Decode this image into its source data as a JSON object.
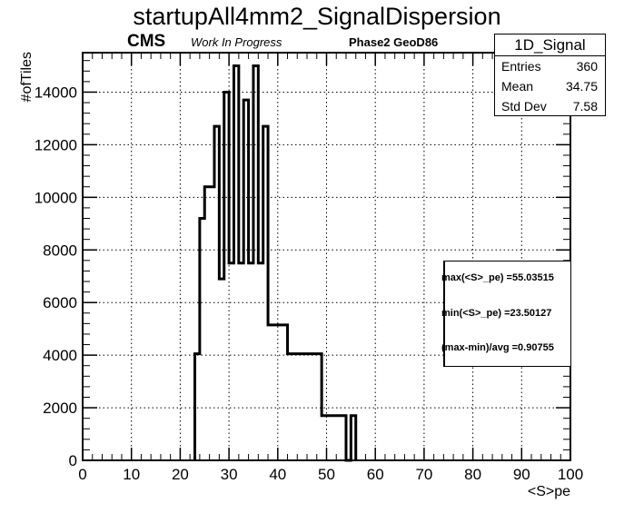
{
  "chart_data": {
    "type": "bar",
    "title": "startupAll4mm2_SignalDispersion",
    "xlabel": "<S>pe",
    "ylabel": "#ofTiles",
    "xlim": [
      0,
      100
    ],
    "ylim": [
      0,
      15500
    ],
    "xticks": [
      0,
      10,
      20,
      30,
      40,
      50,
      60,
      70,
      80,
      90,
      100
    ],
    "yticks": [
      0,
      2000,
      4000,
      6000,
      8000,
      10000,
      12000,
      14000
    ],
    "grid": true,
    "bins": [
      {
        "x0": 23,
        "x1": 24,
        "value": 4050
      },
      {
        "x0": 24,
        "x1": 25,
        "value": 9200
      },
      {
        "x0": 25,
        "x1": 27,
        "value": 10400
      },
      {
        "x0": 27,
        "x1": 28,
        "value": 12700
      },
      {
        "x0": 28,
        "x1": 29,
        "value": 6900
      },
      {
        "x0": 29,
        "x1": 30,
        "value": 14000
      },
      {
        "x0": 30,
        "x1": 31,
        "value": 7500
      },
      {
        "x0": 31,
        "x1": 32,
        "value": 15000
      },
      {
        "x0": 32,
        "x1": 33,
        "value": 7500
      },
      {
        "x0": 33,
        "x1": 34,
        "value": 13700
      },
      {
        "x0": 34,
        "x1": 35,
        "value": 7500
      },
      {
        "x0": 35,
        "x1": 36,
        "value": 15000
      },
      {
        "x0": 36,
        "x1": 37,
        "value": 7500
      },
      {
        "x0": 37,
        "x1": 38,
        "value": 12700
      },
      {
        "x0": 38,
        "x1": 42,
        "value": 5150
      },
      {
        "x0": 42,
        "x1": 49,
        "value": 4050
      },
      {
        "x0": 49,
        "x1": 54,
        "value": 1700
      },
      {
        "x0": 54,
        "x1": 55,
        "value": 0
      },
      {
        "x0": 55,
        "x1": 56,
        "value": 1700
      }
    ]
  },
  "header": {
    "cms": "CMS",
    "work_in_progress": "Work In Progress",
    "geometry": "Phase2 GeoD86"
  },
  "stats_box": {
    "name": "1D_Signal",
    "entries_label": "Entries",
    "entries_value": "360",
    "mean_label": "Mean",
    "mean_value": "34.75",
    "stddev_label": "Std Dev",
    "stddev_value": "7.58"
  },
  "info_box": {
    "max_line": "max(<S>_pe) =55.03515",
    "min_line": "min(<S>_pe) =23.50127",
    "ratio_line": "(max-min)/avg =0.90755"
  }
}
